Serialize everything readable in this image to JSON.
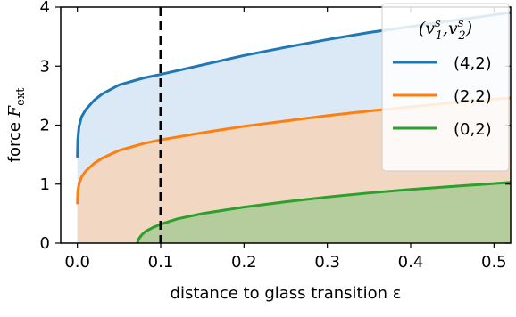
{
  "chart_data": {
    "type": "line",
    "xlabel": "distance to glass transition ε",
    "ylabel_main": "force ",
    "ylabel_symbol": "F",
    "ylabel_subscript": "ext",
    "xlim": [
      -0.02,
      0.52
    ],
    "ylim": [
      0,
      4
    ],
    "xticks": [
      "0.0",
      "0.1",
      "0.2",
      "0.3",
      "0.4",
      "0.5"
    ],
    "yticks": [
      "0",
      "1",
      "2",
      "3",
      "4"
    ],
    "vline_x": 0.1,
    "legend": {
      "placement": "top-right",
      "title_prefix": "(",
      "title_v": "v",
      "title_sub1": "1",
      "title_sub2": "2",
      "title_sup": "s",
      "title_comma": ",",
      "title_suffix": ")"
    },
    "series": [
      {
        "name": "(4,2)",
        "color": "#1f77b4",
        "fill": "#dbe8f5",
        "x": [
          0.0,
          0.0005,
          0.002,
          0.005,
          0.01,
          0.02,
          0.03,
          0.05,
          0.08,
          0.1,
          0.15,
          0.2,
          0.25,
          0.3,
          0.35,
          0.4,
          0.45,
          0.5,
          0.52
        ],
        "y": [
          1.45,
          1.75,
          1.98,
          2.14,
          2.26,
          2.42,
          2.53,
          2.68,
          2.8,
          2.86,
          3.02,
          3.18,
          3.32,
          3.45,
          3.57,
          3.67,
          3.77,
          3.87,
          3.91
        ]
      },
      {
        "name": "(2,2)",
        "color": "#ff7f0e",
        "fill": "#f2d8c3",
        "x": [
          0.0,
          0.0005,
          0.002,
          0.005,
          0.01,
          0.02,
          0.03,
          0.05,
          0.08,
          0.1,
          0.15,
          0.2,
          0.25,
          0.3,
          0.35,
          0.4,
          0.45,
          0.5,
          0.52
        ],
        "y": [
          0.66,
          0.87,
          1.01,
          1.12,
          1.22,
          1.35,
          1.44,
          1.57,
          1.69,
          1.75,
          1.87,
          1.98,
          2.07,
          2.16,
          2.24,
          2.31,
          2.38,
          2.44,
          2.46
        ]
      },
      {
        "name": "(0,2)",
        "color": "#2ca02c",
        "fill": "#b5cc9c",
        "x": [
          0.072,
          0.073,
          0.075,
          0.078,
          0.082,
          0.09,
          0.1,
          0.12,
          0.15,
          0.2,
          0.25,
          0.3,
          0.35,
          0.4,
          0.45,
          0.5,
          0.52
        ],
        "y": [
          0.0,
          0.05,
          0.1,
          0.15,
          0.2,
          0.26,
          0.32,
          0.41,
          0.5,
          0.61,
          0.7,
          0.78,
          0.85,
          0.91,
          0.96,
          1.01,
          1.03
        ]
      }
    ]
  }
}
